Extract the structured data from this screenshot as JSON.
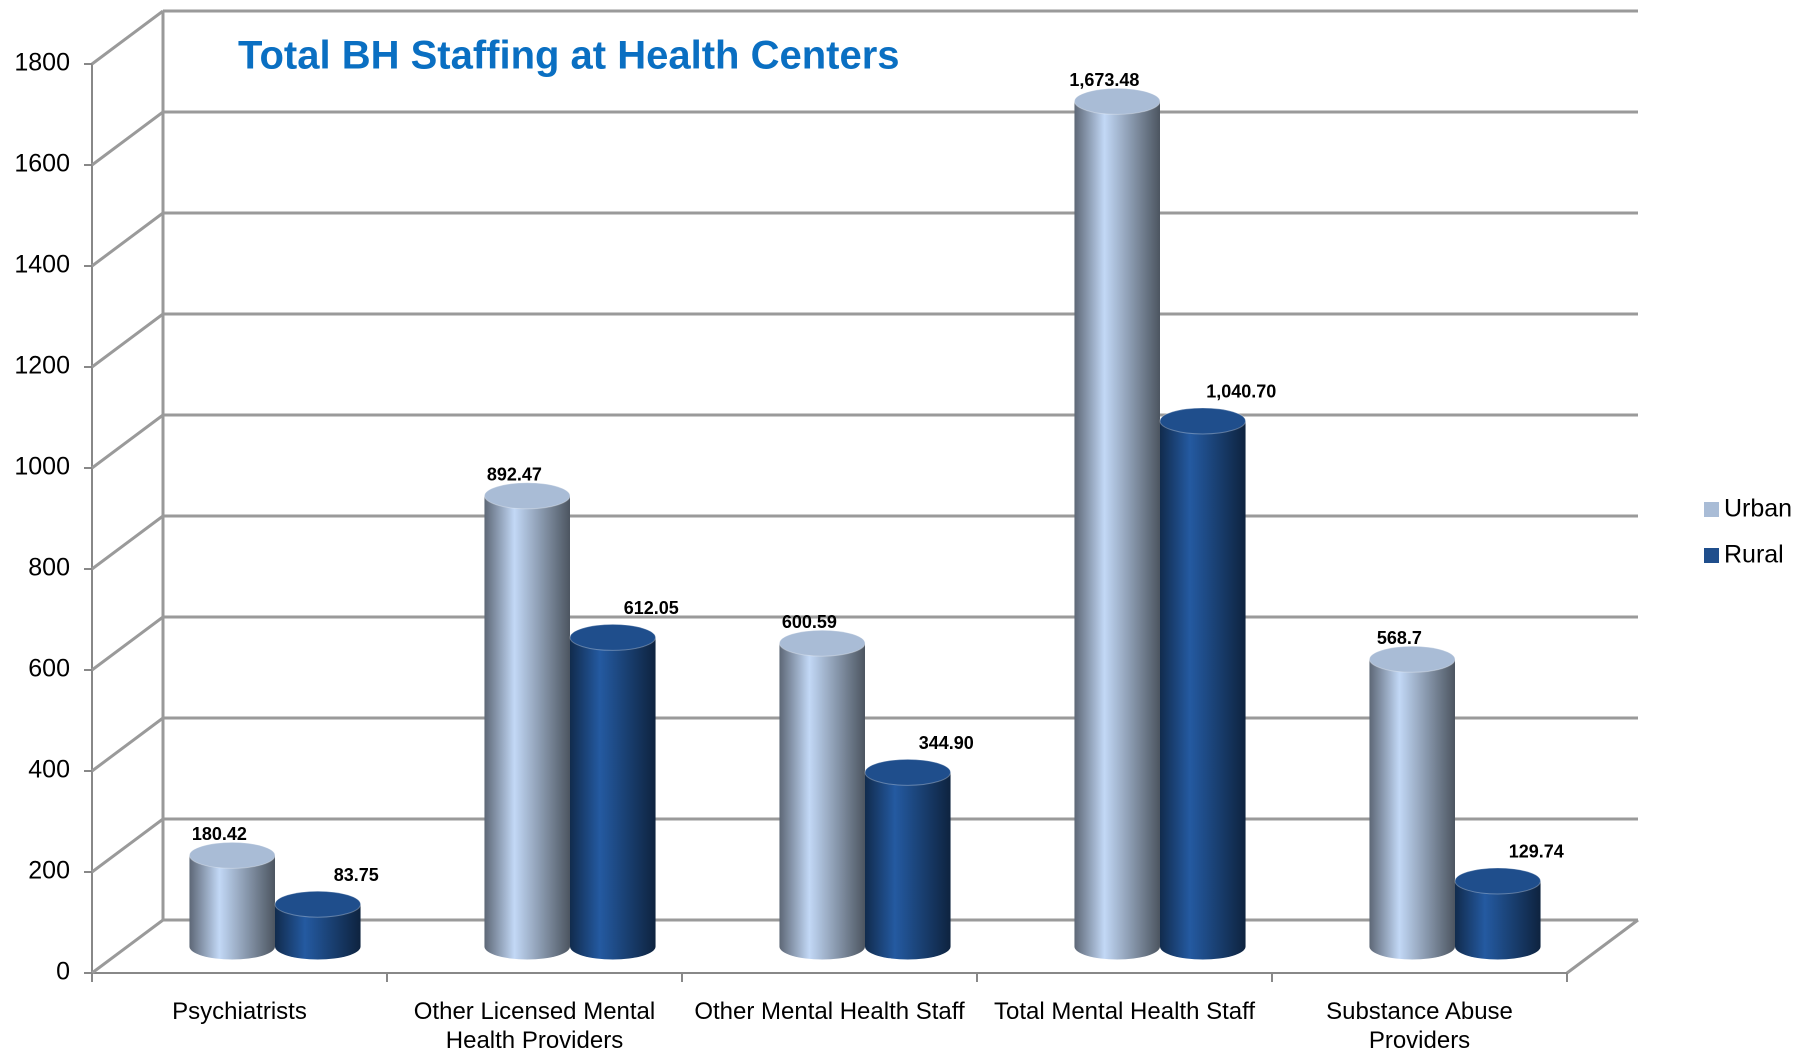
{
  "chart_data": {
    "type": "bar3d",
    "title": "Total BH Staffing at Health Centers",
    "categories": [
      "Psychiatrists",
      "Other Licensed Mental Health Providers",
      "Other Mental Health Staff",
      "Total Mental Health Staff",
      "Substance Abuse Providers"
    ],
    "series": [
      {
        "name": "Urban",
        "color": "#a9bcd6",
        "values": [
          180.42,
          892.47,
          600.59,
          1673.48,
          568.7
        ],
        "value_labels": [
          "180.42",
          "892.47",
          "600.59",
          "1,673.48",
          "568.7"
        ]
      },
      {
        "name": "Rural",
        "color": "#1f4e8c",
        "values": [
          83.75,
          612.05,
          344.9,
          1040.7,
          129.74
        ],
        "value_labels": [
          "83.75",
          "612.05",
          "344.90",
          "1,040.70",
          "129.74"
        ]
      }
    ],
    "ylim": [
      0,
      1800
    ],
    "yticks": [
      0,
      200,
      400,
      600,
      800,
      1000,
      1200,
      1400,
      1600,
      1800
    ],
    "grid": true,
    "legend": "right"
  }
}
